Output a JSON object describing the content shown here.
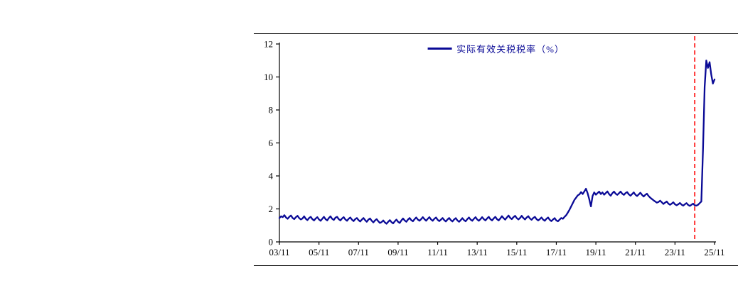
{
  "page": {
    "background_color": "#ffffff"
  },
  "chart_data": {
    "type": "line",
    "title": "",
    "xlabel": "",
    "ylabel": "",
    "ylim": [
      0,
      12
    ],
    "y_ticks": [
      0,
      2,
      4,
      6,
      8,
      10,
      12
    ],
    "x_start": "2003/11",
    "x_end": "2025/11",
    "frequency": "monthly",
    "x_tick_labels": [
      "03/11",
      "05/11",
      "07/11",
      "09/11",
      "11/11",
      "13/11",
      "15/11",
      "17/11",
      "19/11",
      "21/11",
      "23/11",
      "25/11"
    ],
    "x_tick_indices": [
      0,
      24,
      48,
      72,
      96,
      120,
      144,
      168,
      192,
      216,
      240,
      264
    ],
    "grid": "off",
    "legend_position": "top-center",
    "series": [
      {
        "name": "实际有效关税税率（%）",
        "color": "#0a0a96",
        "values": [
          1.45,
          1.55,
          1.5,
          1.62,
          1.48,
          1.4,
          1.52,
          1.6,
          1.45,
          1.38,
          1.5,
          1.58,
          1.44,
          1.36,
          1.42,
          1.55,
          1.4,
          1.32,
          1.45,
          1.52,
          1.38,
          1.3,
          1.42,
          1.5,
          1.36,
          1.28,
          1.4,
          1.52,
          1.38,
          1.3,
          1.45,
          1.55,
          1.4,
          1.33,
          1.47,
          1.52,
          1.38,
          1.3,
          1.42,
          1.5,
          1.36,
          1.28,
          1.4,
          1.48,
          1.35,
          1.26,
          1.38,
          1.45,
          1.32,
          1.24,
          1.35,
          1.45,
          1.32,
          1.22,
          1.35,
          1.42,
          1.28,
          1.18,
          1.3,
          1.38,
          1.25,
          1.15,
          1.2,
          1.3,
          1.18,
          1.1,
          1.22,
          1.32,
          1.2,
          1.12,
          1.25,
          1.35,
          1.22,
          1.15,
          1.3,
          1.42,
          1.3,
          1.22,
          1.35,
          1.45,
          1.32,
          1.25,
          1.38,
          1.48,
          1.35,
          1.28,
          1.38,
          1.5,
          1.38,
          1.28,
          1.4,
          1.5,
          1.36,
          1.28,
          1.4,
          1.48,
          1.34,
          1.26,
          1.35,
          1.45,
          1.32,
          1.24,
          1.36,
          1.45,
          1.32,
          1.24,
          1.36,
          1.44,
          1.3,
          1.22,
          1.32,
          1.44,
          1.32,
          1.25,
          1.38,
          1.48,
          1.35,
          1.28,
          1.4,
          1.5,
          1.36,
          1.28,
          1.38,
          1.5,
          1.38,
          1.3,
          1.42,
          1.52,
          1.38,
          1.3,
          1.42,
          1.52,
          1.38,
          1.3,
          1.42,
          1.56,
          1.44,
          1.35,
          1.48,
          1.6,
          1.46,
          1.38,
          1.5,
          1.58,
          1.44,
          1.36,
          1.45,
          1.58,
          1.45,
          1.36,
          1.48,
          1.56,
          1.42,
          1.34,
          1.45,
          1.52,
          1.38,
          1.3,
          1.38,
          1.48,
          1.35,
          1.28,
          1.4,
          1.48,
          1.34,
          1.26,
          1.36,
          1.44,
          1.3,
          1.25,
          1.35,
          1.45,
          1.4,
          1.52,
          1.62,
          1.78,
          1.95,
          2.15,
          2.35,
          2.55,
          2.68,
          2.82,
          2.88,
          3.02,
          2.9,
          3.06,
          3.22,
          2.95,
          2.58,
          2.15,
          2.78,
          3.0,
          2.86,
          2.96,
          3.05,
          2.9,
          3.0,
          2.86,
          2.96,
          3.06,
          2.9,
          2.8,
          2.95,
          3.05,
          2.92,
          2.85,
          2.95,
          3.05,
          2.92,
          2.85,
          2.96,
          3.02,
          2.88,
          2.8,
          2.9,
          3.0,
          2.86,
          2.78,
          2.88,
          2.98,
          2.85,
          2.75,
          2.85,
          2.92,
          2.78,
          2.68,
          2.6,
          2.52,
          2.45,
          2.38,
          2.42,
          2.5,
          2.4,
          2.3,
          2.38,
          2.45,
          2.32,
          2.25,
          2.32,
          2.4,
          2.28,
          2.22,
          2.28,
          2.36,
          2.26,
          2.2,
          2.28,
          2.35,
          2.24,
          2.18,
          2.25,
          2.32,
          2.22,
          2.2,
          2.25,
          2.35,
          2.45,
          5.6,
          9.4,
          11.0,
          10.55,
          10.9,
          10.15,
          9.6,
          9.85
        ]
      }
    ],
    "annotations": [
      {
        "type": "vline",
        "index": 252,
        "label": "",
        "color": "#ff0000",
        "style": "dashed"
      }
    ]
  },
  "colors": {
    "axis": "#000000",
    "series_line": "#0a0a96",
    "event_line": "#ff0000",
    "frame_border": "#000000"
  }
}
